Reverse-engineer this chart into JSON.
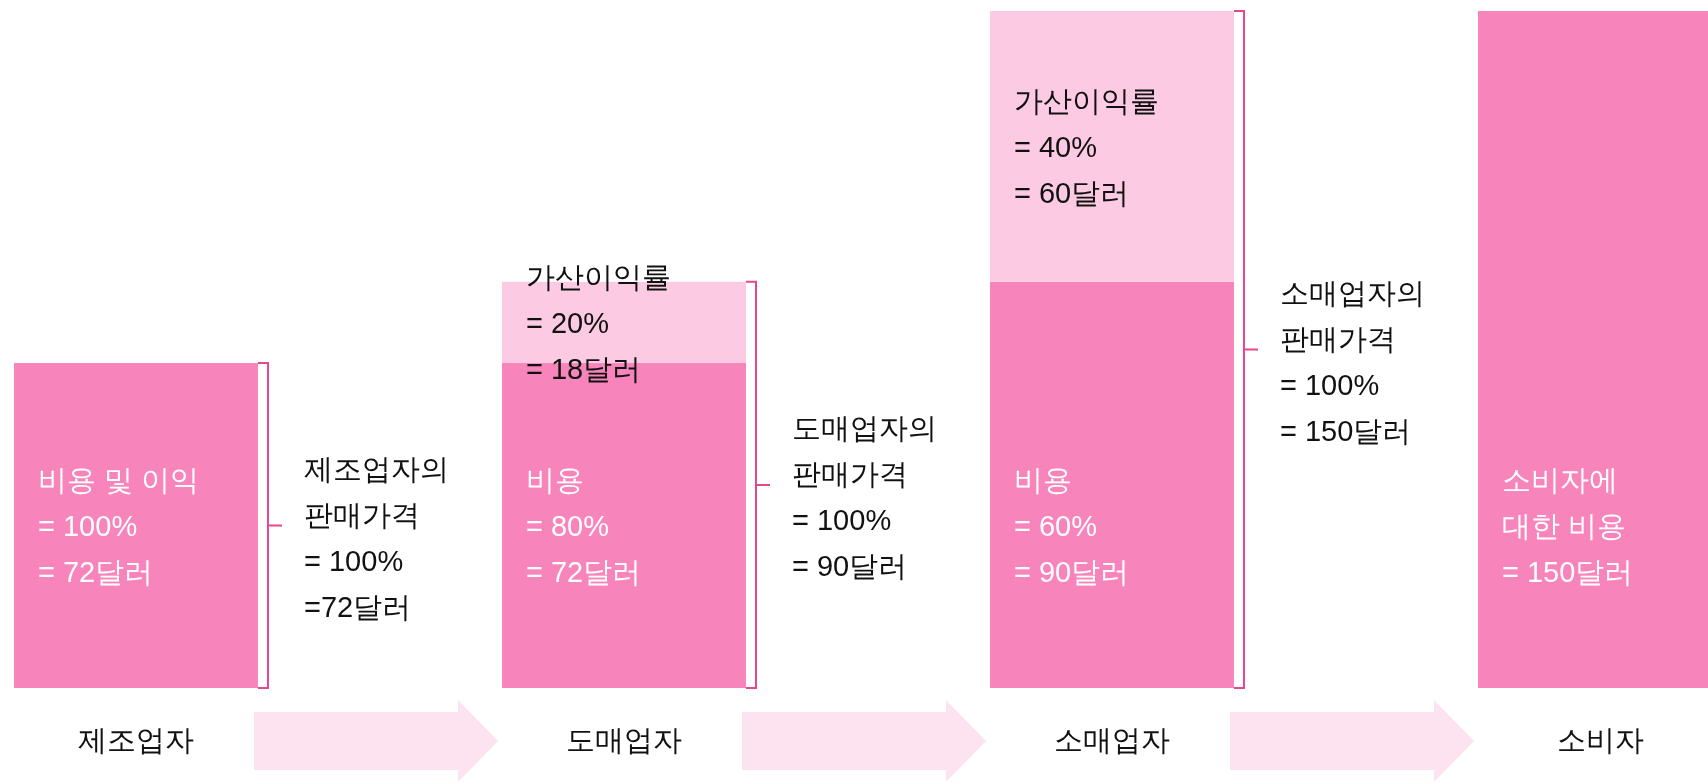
{
  "chart_data": {
    "type": "bar",
    "stacked": true,
    "categories": [
      "제조업자",
      "도매업자",
      "소매업자",
      "소비자"
    ],
    "series": [
      {
        "color": "#f784bb",
        "values": [
          72,
          72,
          90,
          150
        ],
        "value_labels": [
          "비용 및 이익\n= 100%\n= 72달러",
          "비용\n= 80%\n= 72달러",
          "비용\n= 60%\n= 90달러",
          "소비자에\n대한 비용\n= 150달러"
        ]
      },
      {
        "color": "#fccbe3",
        "values": [
          null,
          18,
          60,
          null
        ],
        "value_labels": [
          null,
          "가산이익률\n= 20%\n= 18달러",
          "가산이익률\n= 40%\n= 60달러",
          null
        ]
      }
    ],
    "annotations": [
      "제조업자의\n판매가격\n= 100%\n=72달러",
      "도매업자의\n판매가격\n= 100%\n= 90달러",
      "소매업자의\n판매가격\n= 100%\n= 150달러"
    ]
  }
}
